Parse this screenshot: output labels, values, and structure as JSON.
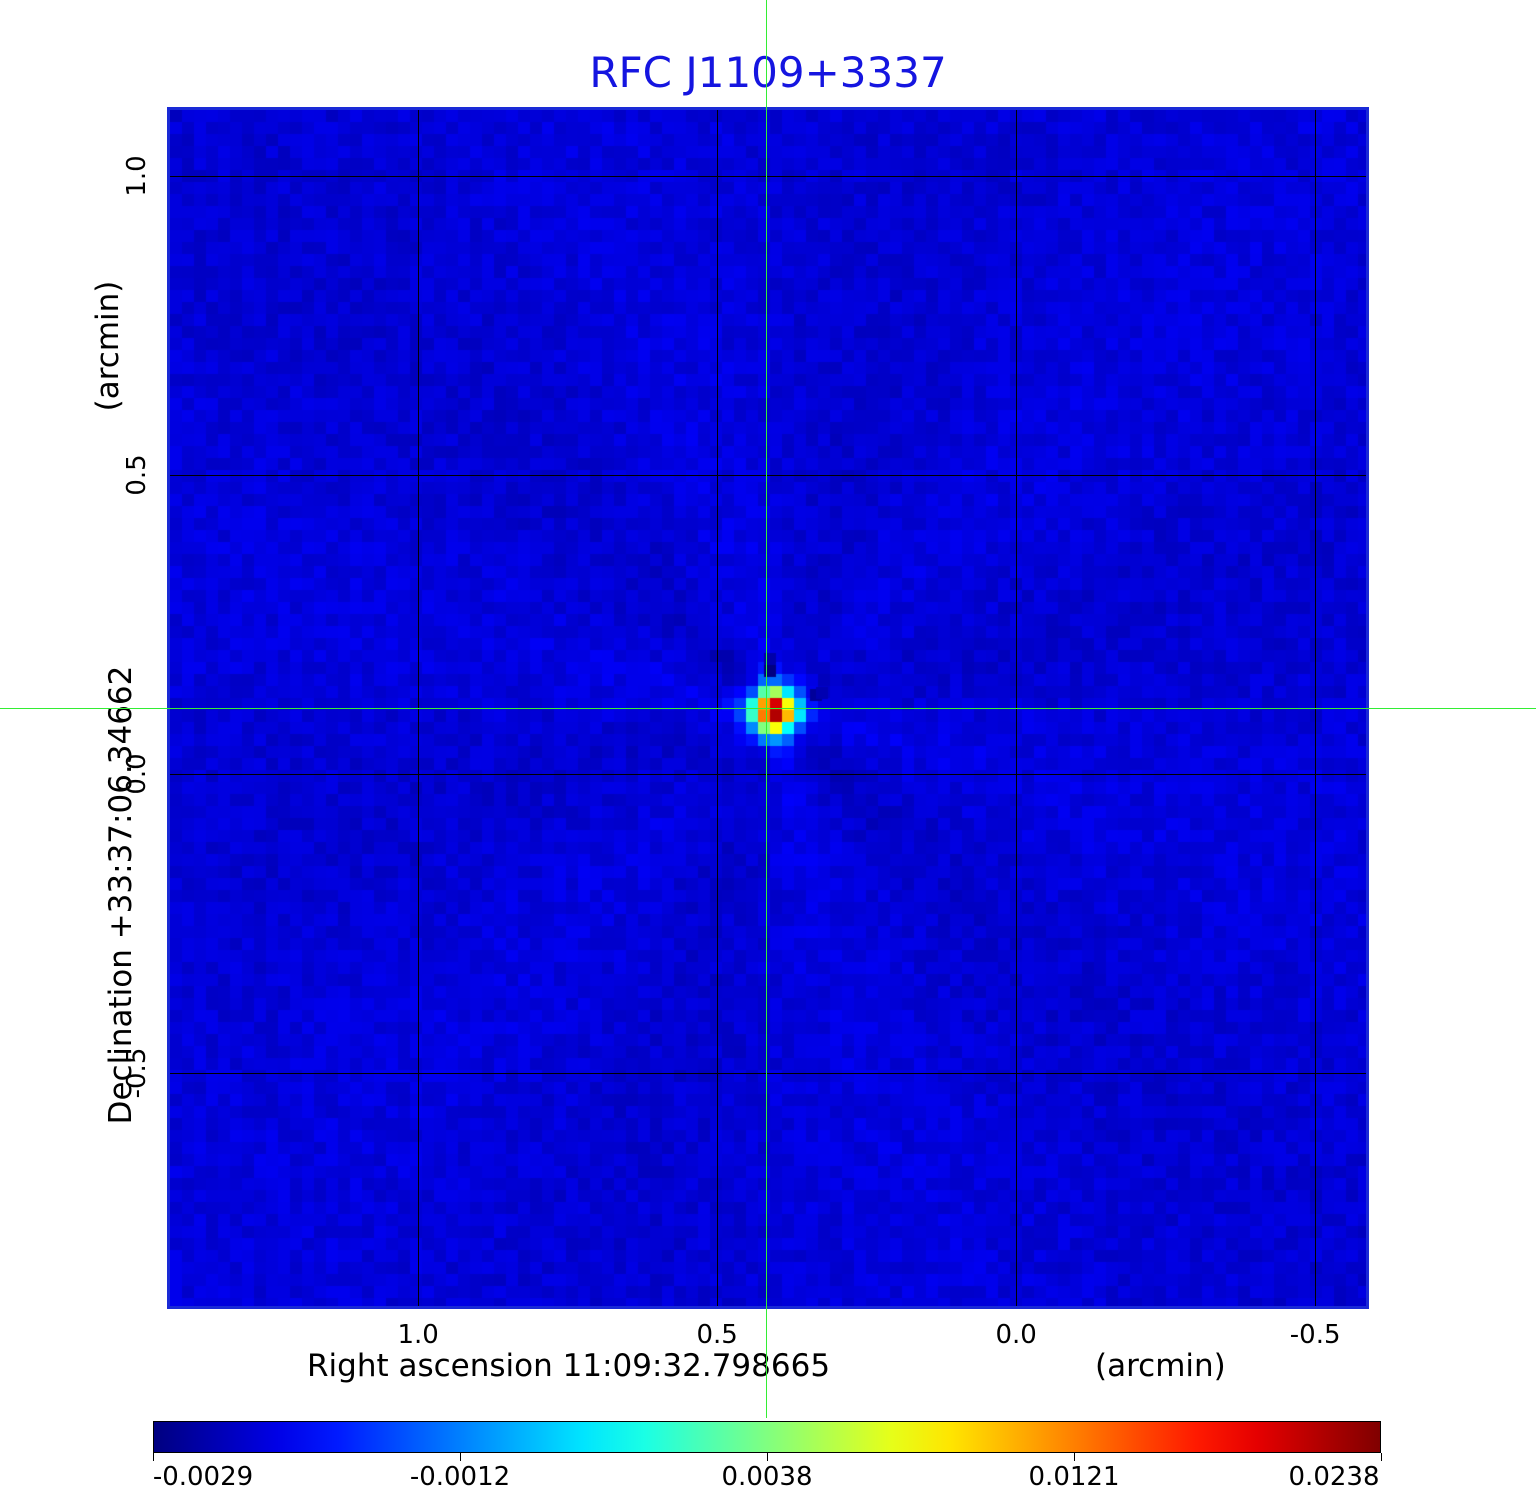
{
  "chart_data": {
    "type": "heatmap",
    "title": "RFC J1109+3337",
    "xlabel": "Right ascension  11:09:32.798665",
    "xunit": "(arcmin)",
    "ylabel": "Declination  +33:37:06.34662",
    "yunit": "(arcmin)",
    "x_ticks": [
      "1.0",
      "0.5",
      "0.0",
      "-0.5"
    ],
    "x_tick_values": [
      1.0,
      0.5,
      0.0,
      -0.5
    ],
    "y_ticks": [
      "1.0",
      "0.5",
      "0.0",
      "-0.5"
    ],
    "y_tick_values": [
      1.0,
      0.5,
      0.0,
      -0.5
    ],
    "xlim": [
      1.415,
      -0.585
    ],
    "ylim": [
      -0.89,
      1.11
    ],
    "crosshair": {
      "x": 0.415,
      "y": 0.105,
      "color": "#33ee33"
    },
    "peak": {
      "x": 0.405,
      "y": 0.105,
      "value": 0.0238
    },
    "colorbar": {
      "colormap": "jet",
      "ticks": [
        "-0.0029",
        "-0.0012",
        "0.0038",
        "0.0121",
        "0.0238"
      ],
      "tick_values": [
        -0.0029,
        -0.0012,
        0.0038,
        0.0121,
        0.0238
      ]
    },
    "grid": true,
    "frame_color": "#1a2ad6",
    "title_color": "#1515e0"
  }
}
